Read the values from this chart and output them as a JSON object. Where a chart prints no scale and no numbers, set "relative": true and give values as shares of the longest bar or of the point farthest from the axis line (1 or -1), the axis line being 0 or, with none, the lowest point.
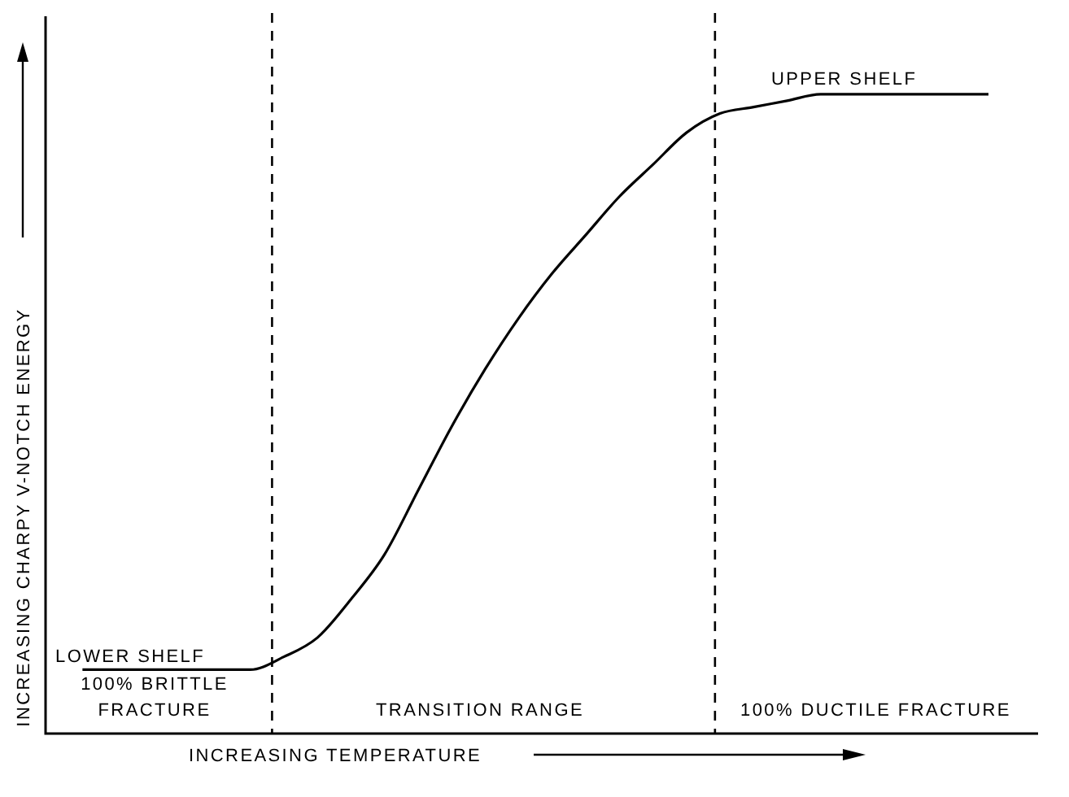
{
  "chart_data": {
    "type": "line",
    "relative": true,
    "xlabel": "INCREASING TEMPERATURE",
    "ylabel": "INCREASING CHARPY V-NOTCH ENERGY",
    "categories": [
      null,
      null,
      null,
      null,
      null,
      null,
      null,
      null,
      null,
      null,
      null,
      null,
      null,
      null,
      null,
      null,
      null,
      null,
      null,
      null,
      null,
      null,
      null,
      null,
      null,
      null,
      null,
      null
    ],
    "values": [
      0.1,
      0.1,
      0.1,
      0.1,
      0.1,
      0.1,
      0.12,
      0.15,
      0.21,
      0.28,
      0.38,
      0.48,
      0.57,
      0.65,
      0.72,
      0.78,
      0.84,
      0.89,
      0.94,
      0.97,
      0.98,
      0.99,
      1,
      1,
      1,
      1,
      1,
      1
    ],
    "color": "#000000",
    "marker": "none",
    "line_style": "solid",
    "annotations": [
      "UPPER SHELF",
      "LOWER SHELF",
      "100% BRITTLE\nFRACTURE",
      "TRANSITION RANGE",
      "100% DUCTILE FRACTURE"
    ]
  }
}
